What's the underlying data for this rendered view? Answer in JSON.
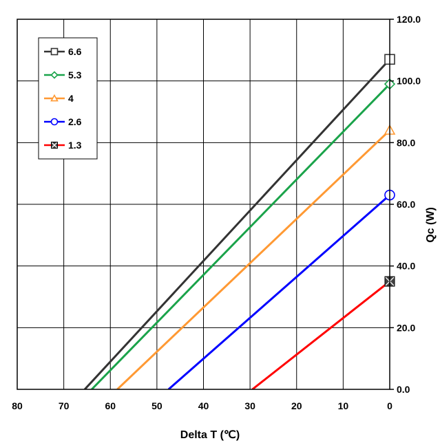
{
  "chart_data": {
    "type": "line",
    "xlabel": "Delta T (℃)",
    "ylabel": "Qc (W)",
    "x_ticks": [
      "80",
      "70",
      "60",
      "50",
      "40",
      "30",
      "20",
      "10",
      "0"
    ],
    "y_ticks": [
      "0.0",
      "20.0",
      "40.0",
      "60.0",
      "80.0",
      "100.0",
      "120.0"
    ],
    "xlim": [
      80,
      0
    ],
    "ylim": [
      0,
      120
    ],
    "grid": true,
    "legend_position": "top-left",
    "series": [
      {
        "name": "6.6",
        "color": "#333333",
        "marker": "square",
        "x": [
          65.5,
          0
        ],
        "y": [
          0,
          107
        ]
      },
      {
        "name": "5.3",
        "color": "#1aa34a",
        "marker": "diamond",
        "x": [
          64.0,
          0
        ],
        "y": [
          0,
          99
        ]
      },
      {
        "name": "4",
        "color": "#ff9933",
        "marker": "triangle",
        "x": [
          58.5,
          0
        ],
        "y": [
          0,
          84
        ]
      },
      {
        "name": "2.6",
        "color": "#0000ff",
        "marker": "circle",
        "x": [
          47.5,
          0
        ],
        "y": [
          0,
          63
        ]
      },
      {
        "name": "1.3",
        "color": "#ff0000",
        "marker": "x-square",
        "x": [
          29.5,
          0
        ],
        "y": [
          0,
          35
        ]
      }
    ]
  }
}
